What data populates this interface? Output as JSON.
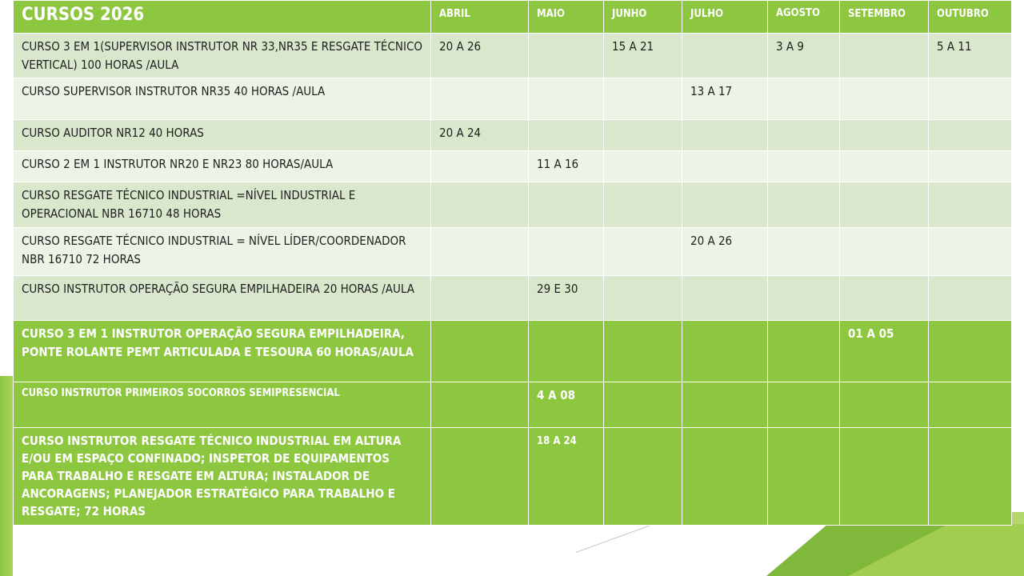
{
  "title": "CURSOS 2026",
  "months": [
    "ABRIL",
    "MAIO",
    "JUNHO",
    "JULHO",
    "AGOSTO",
    "SETEMBRO",
    "OUTUBRO"
  ],
  "rows": [
    {
      "course": "CURSO 3 EM 1(SUPERVISOR INSTRUTOR NR 33,NR35 E RESGATE TÉCNICO VERTICAL) 100 HORAS /AULA",
      "dates": [
        "20 A 26",
        "",
        "15 A 21",
        "",
        "3 A 9",
        "",
        "5 A 11"
      ]
    },
    {
      "course": "CURSO SUPERVISOR INSTRUTOR NR35 40 HORAS /AULA",
      "dates": [
        "",
        "",
        "",
        "13 A 17",
        "",
        "",
        ""
      ]
    },
    {
      "course": "CURSO AUDITOR NR12 40 HORAS",
      "dates": [
        "20 A 24",
        "",
        "",
        "",
        "",
        "",
        ""
      ]
    },
    {
      "course": "CURSO 2 EM 1 INSTRUTOR NR20 E NR23 80 HORAS/AULA",
      "dates": [
        "",
        "11 A 16",
        "",
        "",
        "",
        "",
        ""
      ]
    },
    {
      "course": "CURSO RESGATE TÉCNICO INDUSTRIAL =NÍVEL INDUSTRIAL E OPERACIONAL NBR 16710 48 HORAS",
      "dates": [
        "",
        "",
        "",
        "",
        "",
        "",
        ""
      ]
    },
    {
      "course": "CURSO RESGATE TÉCNICO INDUSTRIAL = NÍVEL LÍDER/COORDENADOR NBR 16710  72 HORAS",
      "dates": [
        "",
        "",
        "",
        "20 A 26",
        "",
        "",
        ""
      ]
    },
    {
      "course": "CURSO INSTRUTOR OPERAÇÃO SEGURA EMPILHADEIRA 20 HORAS /AULA",
      "dates": [
        "",
        "29 E 30",
        "",
        "",
        "",
        "",
        ""
      ]
    },
    {
      "course": "CURSO 3 EM 1 INSTRUTOR OPERAÇÃO SEGURA EMPILHADEIRA, PONTE ROLANTE PEMT ARTICULADA E TESOURA 60 HORAS/AULA",
      "dates": [
        "",
        "",
        "",
        "",
        "",
        "01 A 05",
        ""
      ]
    },
    {
      "course": "CURSO INSTRUTOR PRIMEIROS SOCORROS SEMIPRESENCIAL",
      "dates": [
        "",
        "4 A 08",
        "",
        "",
        "",
        "",
        ""
      ]
    },
    {
      "course": "CURSO INSTRUTOR RESGATE TÉCNICO INDUSTRIAL EM ALTURA E/OU EM ESPAÇO CONFINADO;  INSPETOR DE EQUIPAMENTOS PARA TRABALHO E RESGATE EM ALTURA; INSTALADOR DE ANCORAGENS;  PLANEJADOR ESTRATÉGICO PARA TRABALHO E RESGATE; 72 HORAS",
      "dates": [
        "",
        "18 A 24",
        "",
        "",
        "",
        "",
        ""
      ]
    }
  ],
  "colors": {
    "header_green": "#8dc63f",
    "row_light": "#d9e8cc",
    "row_lighter": "#ecf4e6"
  }
}
